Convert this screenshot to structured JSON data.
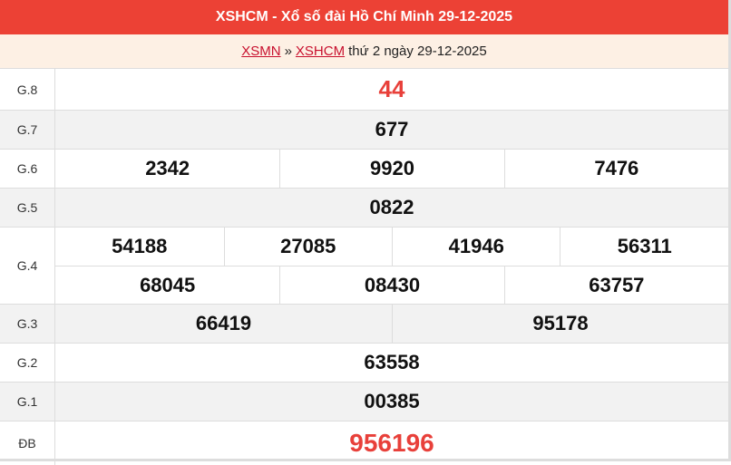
{
  "header": {
    "title": "XSHCM - Xổ số đài Hồ Chí Minh 29-12-2025"
  },
  "breadcrumb": {
    "link1": "XSMN",
    "sep": "»",
    "link2": "XSHCM",
    "text": "thứ 2 ngày 29-12-2025"
  },
  "prizes": {
    "g8": {
      "label": "G.8",
      "values": [
        "44"
      ]
    },
    "g7": {
      "label": "G.7",
      "values": [
        "677"
      ]
    },
    "g6": {
      "label": "G.6",
      "values": [
        "2342",
        "9920",
        "7476"
      ]
    },
    "g5": {
      "label": "G.5",
      "values": [
        "0822"
      ]
    },
    "g4": {
      "label": "G.4",
      "values": [
        "54188",
        "27085",
        "41946",
        "56311",
        "68045",
        "08430",
        "63757"
      ]
    },
    "g3": {
      "label": "G.3",
      "values": [
        "66419",
        "95178"
      ]
    },
    "g2": {
      "label": "G.2",
      "values": [
        "63558"
      ]
    },
    "g1": {
      "label": "G.1",
      "values": [
        "00385"
      ]
    },
    "db": {
      "label": "ĐB",
      "values": [
        "956196"
      ]
    }
  },
  "colors": {
    "header": "#ec4135",
    "highlight": "#e8403a",
    "subheader": "#fdf0e4"
  }
}
